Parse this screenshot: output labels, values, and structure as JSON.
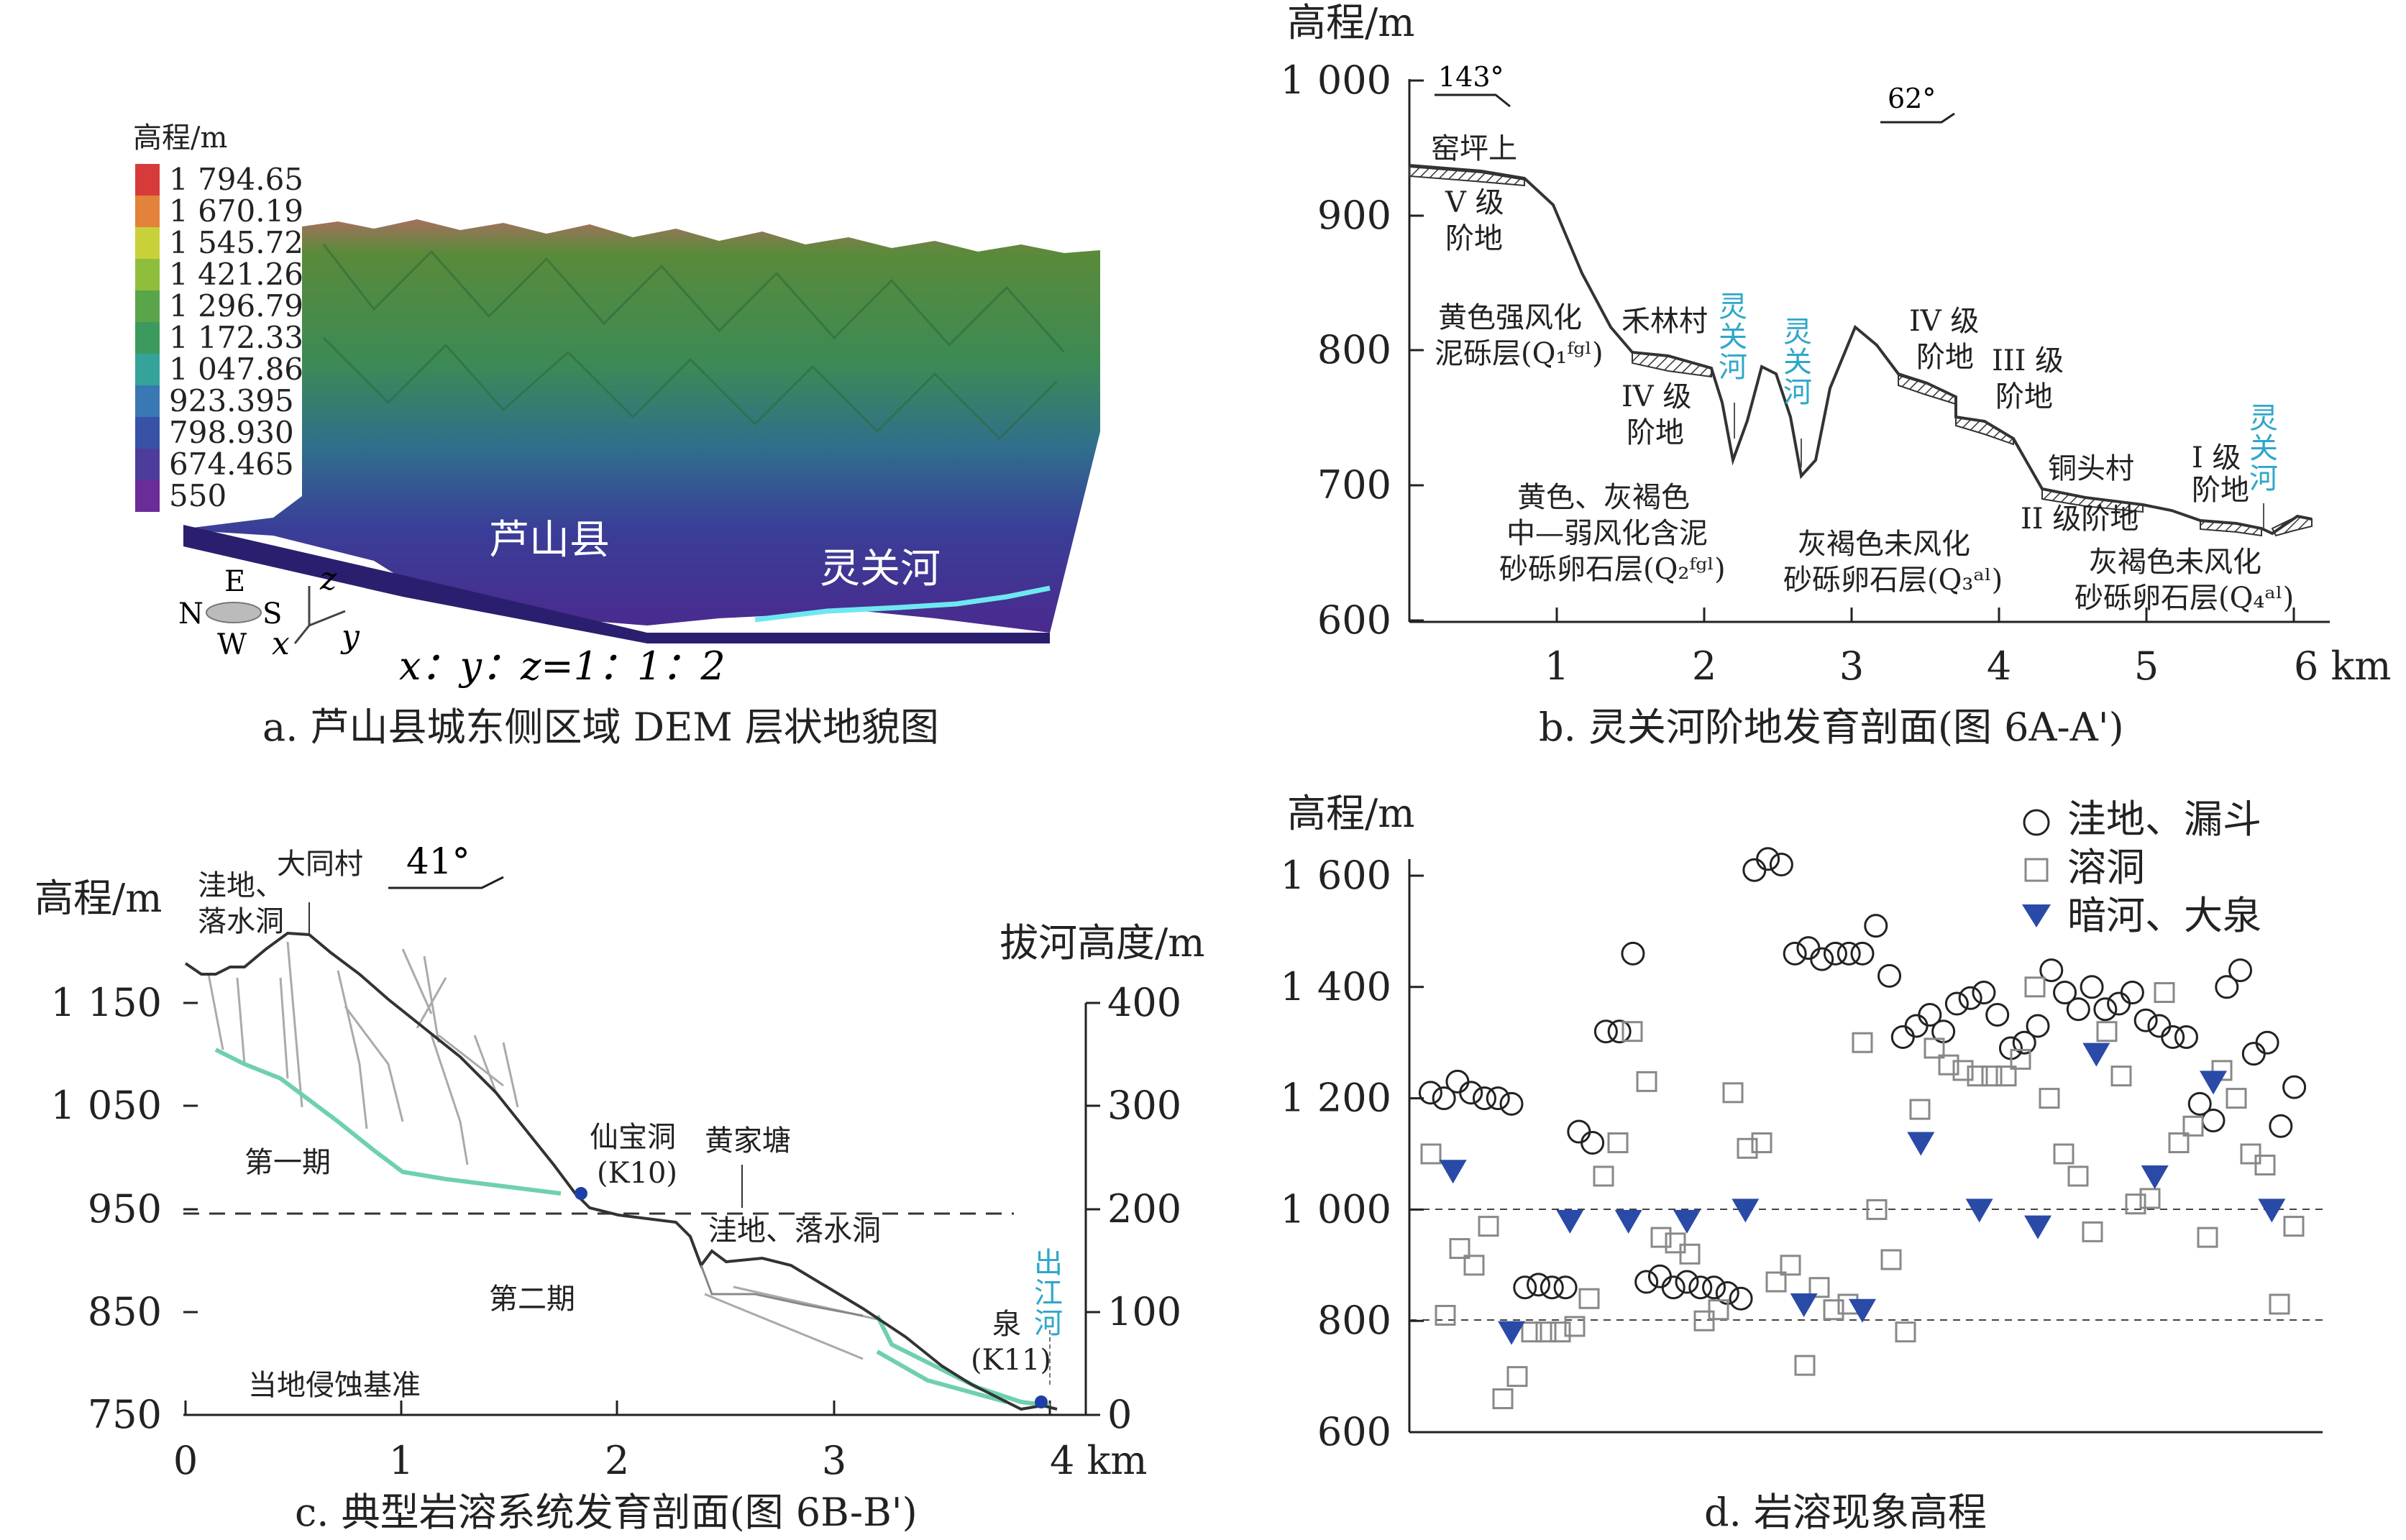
{
  "panel_a": {
    "caption": "a. 芦山县城东侧区域 DEM 层状地貌图",
    "legend_title": "高程/m",
    "legend": [
      {
        "value": "1 794.65",
        "color": "#d73a3a"
      },
      {
        "value": "1 670.19",
        "color": "#e3823a"
      },
      {
        "value": "1 545.72",
        "color": "#c9d13a"
      },
      {
        "value": "1 421.26",
        "color": "#8fbf3a"
      },
      {
        "value": "1 296.79",
        "color": "#5aa44a"
      },
      {
        "value": "1 172.33",
        "color": "#3c9a5e"
      },
      {
        "value": "1 047.86",
        "color": "#35a39a"
      },
      {
        "value": "923.395",
        "color": "#3a78b4"
      },
      {
        "value": "798.930",
        "color": "#3752a6"
      },
      {
        "value": "674.465",
        "color": "#4d3c9c"
      },
      {
        "value": "550",
        "color": "#6a2c98"
      }
    ],
    "place_county": "芦山县",
    "place_river": "灵关河",
    "compass": {
      "e": "E",
      "n": "N",
      "s": "S",
      "w": "W"
    },
    "axes": {
      "x": "x",
      "y": "y",
      "z": "z"
    },
    "ratio": "x：y：z=1：1：2"
  },
  "panel_b": {
    "caption": "b. 灵关河阶地发育剖面(图 6A-A')",
    "y_title": "高程/m",
    "y_ticks": [
      "1 000",
      "900",
      "800",
      "700",
      "600"
    ],
    "x_ticks": [
      "1",
      "2",
      "3",
      "4",
      "5",
      "6 km"
    ],
    "dir1": "143°",
    "dir2": "62°",
    "labels": {
      "yaopingshang": "窑坪上",
      "t5a": "V 级",
      "t5b": "阶地",
      "helin": "禾林村",
      "t4a": "IV 级",
      "t4b": "阶地",
      "layer1a": "黄色强风化",
      "layer1b": "泥砾层(Q₁ᶠᵍˡ)",
      "river": "灵关河",
      "t4c": "IV 级",
      "t4d": "阶地",
      "t3a": "III 级",
      "t3b": "阶地",
      "tongtou": "铜头村",
      "t2": "II 级阶地",
      "t1a": "I 级",
      "t1b": "阶地",
      "layer2a": "黄色、灰褐色",
      "layer2b": "中—弱风化含泥",
      "layer2c": "砂砾卵石层(Q₂ᶠᵍˡ)",
      "layer3a": "灰褐色未风化",
      "layer3b": "砂砾卵石层(Q₃ᵃˡ)",
      "layer4a": "灰褐色未风化",
      "layer4b": "砂砾卵石层(Q₄ᵃˡ)"
    }
  },
  "panel_c": {
    "caption": "c. 典型岩溶系统发育剖面(图 6B-B')",
    "y_title": "高程/m",
    "y2_title": "拔河高度/m",
    "y_ticks": [
      "1 150",
      "1 050",
      "950",
      "850",
      "750"
    ],
    "y2_ticks": [
      "400",
      "300",
      "200",
      "100",
      "0"
    ],
    "x_ticks": [
      "0",
      "1",
      "2",
      "3",
      "4 km"
    ],
    "direction": "41°",
    "labels": {
      "depression": "洼地、",
      "sinkhole": "落水洞",
      "datong": "大同村",
      "xianbao": "仙宝洞",
      "k10": "(K10)",
      "huangjia": "黄家塘",
      "depression2": "洼地、落水洞",
      "phase1": "第一期",
      "phase2": "第二期",
      "spring": "泉",
      "k11": "(K11)",
      "river_out": "出江河",
      "base": "当地侵蚀基准"
    }
  },
  "panel_d": {
    "caption": "d. 岩溶现象高程",
    "y_title": "高程/m",
    "y_ticks": [
      "1 600",
      "1 400",
      "1 200",
      "1 000",
      "800",
      "600"
    ],
    "legend": [
      "洼地、漏斗",
      "溶洞",
      "暗河、大泉"
    ]
  },
  "chart_data": {
    "type": "scatter",
    "title": "d. 岩溶现象高程",
    "ylabel": "高程/m",
    "ylim": [
      600,
      1600
    ],
    "series": [
      {
        "name": "洼地、漏斗",
        "marker": "circle",
        "values": [
          1210,
          1200,
          1230,
          1210,
          1200,
          1200,
          1190,
          860,
          865,
          860,
          860,
          1140,
          1120,
          1320,
          1320,
          1460,
          870,
          880,
          860,
          870,
          860,
          860,
          850,
          840,
          1610,
          1630,
          1620,
          1460,
          1470,
          1450,
          1460,
          1460,
          1460,
          1510,
          1420,
          1310,
          1330,
          1350,
          1320,
          1370,
          1380,
          1390,
          1350,
          1290,
          1300,
          1330,
          1430,
          1390,
          1360,
          1400,
          1360,
          1370,
          1390,
          1340,
          1330,
          1310,
          1310,
          1190,
          1160,
          1400,
          1430,
          1280,
          1300,
          1150,
          1220
        ]
      },
      {
        "name": "溶洞",
        "marker": "square",
        "values": [
          1100,
          810,
          930,
          900,
          970,
          660,
          700,
          780,
          780,
          780,
          790,
          840,
          1060,
          1120,
          1320,
          1230,
          950,
          940,
          920,
          800,
          820,
          1210,
          1110,
          1120,
          870,
          900,
          720,
          860,
          820,
          830,
          1300,
          1000,
          910,
          780,
          1180,
          1290,
          1260,
          1250,
          1240,
          1240,
          1240,
          1270,
          1400,
          1200,
          1100,
          1060,
          960,
          1320,
          1240,
          1010,
          1020,
          1390,
          1120,
          1150,
          950,
          1250,
          1200,
          1100,
          1080,
          830,
          970
        ]
      },
      {
        "name": "暗河、大泉",
        "marker": "triangle",
        "values": [
          1070,
          780,
          980,
          980,
          980,
          1000,
          830,
          820,
          1120,
          1000,
          970,
          1280,
          1060,
          1230,
          1000
        ]
      }
    ]
  }
}
